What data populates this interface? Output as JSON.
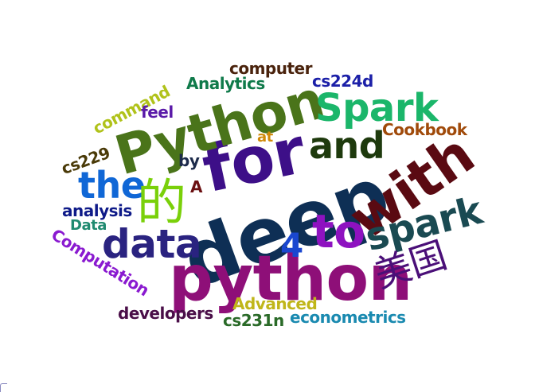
{
  "word_cloud": {
    "words": [
      {
        "text": "deep",
        "color": "#0e2f55"
      },
      {
        "text": "python",
        "color": "#8e0f78"
      },
      {
        "text": "for",
        "color": "#3d0f88"
      },
      {
        "text": "Python",
        "color": "#4a741a"
      },
      {
        "text": "with",
        "color": "#5a0a12"
      },
      {
        "text": "Spark",
        "color": "#1bb66a"
      },
      {
        "text": "and",
        "color": "#1e3a0d"
      },
      {
        "text": "spark",
        "color": "#1a4a52"
      },
      {
        "text": "to",
        "color": "#8e12c0"
      },
      {
        "text": "data",
        "color": "#2a2380"
      },
      {
        "text": "the",
        "color": "#1067d6"
      },
      {
        "text": "的",
        "color": "#7ad00a"
      },
      {
        "text": "美国",
        "color": "#4a0f78"
      },
      {
        "text": "4",
        "color": "#1a47d0"
      },
      {
        "text": "computer",
        "color": "#4a230d"
      },
      {
        "text": "Analytics",
        "color": "#0f7a4a"
      },
      {
        "text": "cs224d",
        "color": "#1c20a8"
      },
      {
        "text": "command",
        "color": "#b0c21a"
      },
      {
        "text": "feel",
        "color": "#5a1aa8"
      },
      {
        "text": "Cookbook",
        "color": "#a04a0a"
      },
      {
        "text": "at",
        "color": "#d08a0a"
      },
      {
        "text": "cs229",
        "color": "#4a3a08"
      },
      {
        "text": "by",
        "color": "#1c2a4a"
      },
      {
        "text": "A",
        "color": "#6a0e10"
      },
      {
        "text": "analysis",
        "color": "#0e1a88"
      },
      {
        "text": "Data",
        "color": "#1f8a70"
      },
      {
        "text": "Computation",
        "color": "#8a1ad0"
      },
      {
        "text": "Advanced",
        "color": "#c0b61a"
      },
      {
        "text": "developers",
        "color": "#4a0e48"
      },
      {
        "text": "cs231n",
        "color": "#2a6a28"
      },
      {
        "text": "econometrics",
        "color": "#1a8ab0"
      }
    ]
  }
}
